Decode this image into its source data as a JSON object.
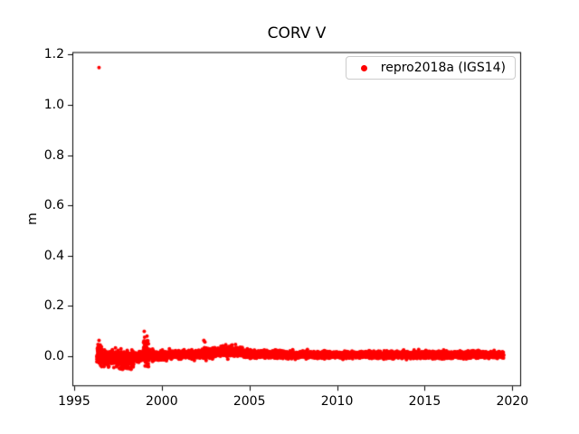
{
  "chart_data": {
    "type": "scatter",
    "title": "CORV V",
    "xlabel": "",
    "ylabel": "m",
    "xlim": [
      1994.9,
      2020.5
    ],
    "ylim": [
      -0.12,
      1.21
    ],
    "xticks": [
      1995,
      2000,
      2005,
      2010,
      2015,
      2020
    ],
    "yticks": [
      0.0,
      0.2,
      0.4,
      0.6,
      0.8,
      1.0,
      1.2
    ],
    "grid": false,
    "legend": {
      "position": "upper right",
      "entries": [
        {
          "label": "repro2018a (IGS14)",
          "color": "#ff0000",
          "marker": "point"
        }
      ]
    },
    "series": [
      {
        "name": "repro2018a (IGS14)",
        "color": "#ff0000",
        "marker_radius_px": 2,
        "band_segments": [
          {
            "x_start": 1996.3,
            "x_end": 1996.6,
            "mean": 0.005,
            "std": 0.02,
            "n": 100
          },
          {
            "x_start": 1996.6,
            "x_end": 1997.4,
            "mean": -0.008,
            "std": 0.012,
            "n": 270
          },
          {
            "x_start": 1997.4,
            "x_end": 1998.4,
            "mean": -0.012,
            "std": 0.016,
            "n": 330
          },
          {
            "x_start": 1998.4,
            "x_end": 1998.95,
            "mean": -0.003,
            "std": 0.01,
            "n": 180
          },
          {
            "x_start": 1998.95,
            "x_end": 1999.25,
            "mean": 0.015,
            "std": 0.022,
            "n": 100
          },
          {
            "x_start": 1999.25,
            "x_end": 2000.3,
            "mean": 0.002,
            "std": 0.009,
            "n": 350
          },
          {
            "x_start": 2000.3,
            "x_end": 2002.3,
            "mean": 0.006,
            "std": 0.007,
            "n": 660
          },
          {
            "x_start": 2002.3,
            "x_end": 2002.9,
            "mean": 0.012,
            "std": 0.01,
            "n": 200
          },
          {
            "x_start": 2002.9,
            "x_end": 2004.6,
            "mean": 0.017,
            "std": 0.008,
            "n": 560
          },
          {
            "x_start": 2004.6,
            "x_end": 2007.0,
            "mean": 0.008,
            "std": 0.007,
            "n": 790
          },
          {
            "x_start": 2007.0,
            "x_end": 2019.5,
            "mean": 0.005,
            "std": 0.006,
            "n": 4100
          }
        ],
        "outliers": [
          [
            1996.42,
            1.148
          ],
          [
            1996.36,
            0.046
          ],
          [
            1996.4,
            0.04
          ],
          [
            1996.45,
            0.036
          ],
          [
            1997.58,
            -0.048
          ],
          [
            1997.72,
            -0.052
          ],
          [
            1998.05,
            -0.046
          ],
          [
            1998.15,
            -0.05
          ],
          [
            1998.98,
            0.06
          ],
          [
            1999.0,
            0.098
          ],
          [
            1999.02,
            0.075
          ],
          [
            1999.04,
            0.052
          ],
          [
            2002.4,
            0.062
          ],
          [
            2002.46,
            0.056
          ],
          [
            2003.65,
            0.045
          ],
          [
            2003.95,
            0.042
          ]
        ]
      }
    ]
  }
}
